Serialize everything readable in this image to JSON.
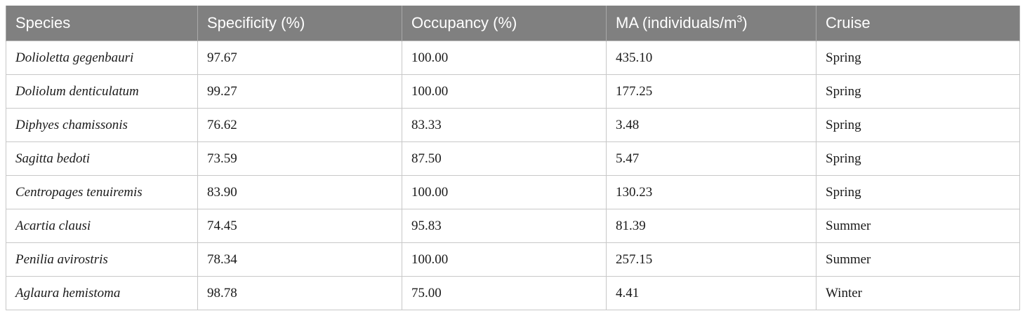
{
  "table": {
    "headers": {
      "species": "Species",
      "specificity": "Specificity (%)",
      "occupancy": "Occupancy (%)",
      "ma_prefix": "MA (individuals/m",
      "ma_superscript": "3",
      "ma_suffix": ")",
      "cruise": "Cruise"
    },
    "rows": [
      {
        "species": "Dolioletta gegenbauri",
        "specificity": "97.67",
        "occupancy": "100.00",
        "ma": "435.10",
        "cruise": "Spring"
      },
      {
        "species": "Doliolum denticulatum",
        "specificity": "99.27",
        "occupancy": "100.00",
        "ma": "177.25",
        "cruise": "Spring"
      },
      {
        "species": "Diphyes chamissonis",
        "specificity": "76.62",
        "occupancy": "83.33",
        "ma": "3.48",
        "cruise": "Spring"
      },
      {
        "species": "Sagitta bedoti",
        "specificity": "73.59",
        "occupancy": "87.50",
        "ma": "5.47",
        "cruise": "Spring"
      },
      {
        "species": "Centropages tenuiremis",
        "specificity": "83.90",
        "occupancy": "100.00",
        "ma": "130.23",
        "cruise": "Spring"
      },
      {
        "species": "Acartia clausi",
        "specificity": "74.45",
        "occupancy": "95.83",
        "ma": "81.39",
        "cruise": "Summer"
      },
      {
        "species": "Penilia avirostris",
        "specificity": "78.34",
        "occupancy": "100.00",
        "ma": "257.15",
        "cruise": "Summer"
      },
      {
        "species": "Aglaura hemistoma",
        "specificity": "98.78",
        "occupancy": "75.00",
        "ma": "4.41",
        "cruise": "Winter"
      }
    ]
  }
}
